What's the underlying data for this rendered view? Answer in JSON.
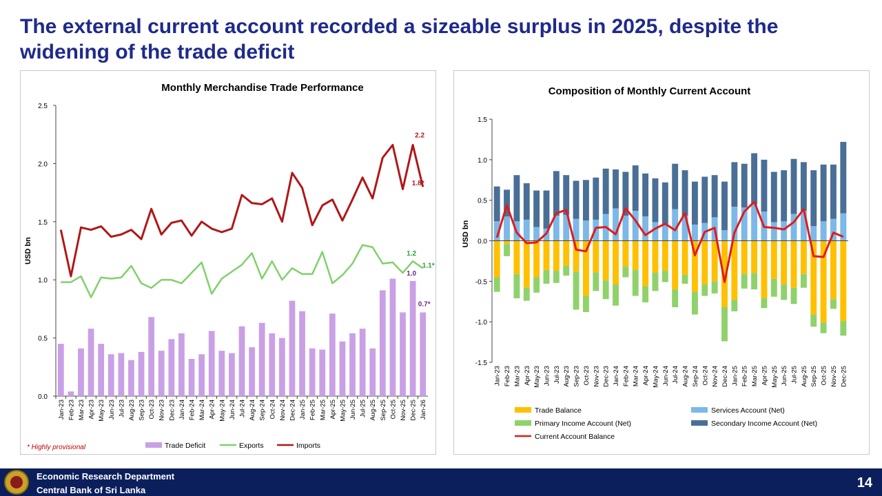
{
  "slide": {
    "title": "The external current account recorded a sizeable surplus in 2025, despite the widening of the trade deficit",
    "footer_line1": "Economic Research Department",
    "footer_line2": "Central Bank of Sri Lanka",
    "page_number": "14"
  },
  "chart_data": [
    {
      "type": "bar+line",
      "title": "Monthly Merchandise Trade Performance",
      "ylabel": "USD bn",
      "ylim": [
        0,
        2.5
      ],
      "yticks": [
        "0.0",
        "0.5",
        "1.0",
        "1.5",
        "2.0",
        "2.5"
      ],
      "grid": false,
      "legend_position": "bottom",
      "note": "* Highly provisional",
      "categories": [
        "Jan-23",
        "Feb-23",
        "Mar-23",
        "Apr-23",
        "May-23",
        "Jun-23",
        "Jul-23",
        "Aug-23",
        "Sep-23",
        "Oct-23",
        "Nov-23",
        "Dec-23",
        "Jan-24",
        "Feb-24",
        "Mar-24",
        "Apr-24",
        "May-24",
        "Jun-24",
        "Jul-24",
        "Aug-24",
        "Sep-24",
        "Oct-24",
        "Nov-24",
        "Dec-24",
        "Jan-25",
        "Feb-25",
        "Mar-25",
        "Apr-25",
        "May-25",
        "Jun-25",
        "Jul-25",
        "Aug-25",
        "Sep-25",
        "Oct-25",
        "Nov-25",
        "Dec-25",
        "Jan-26"
      ],
      "series": [
        {
          "name": "Trade Deficit",
          "kind": "bar",
          "color": "#c9a0e6",
          "values": [
            0.45,
            0.04,
            0.41,
            0.58,
            0.45,
            0.36,
            0.37,
            0.31,
            0.38,
            0.68,
            0.39,
            0.49,
            0.54,
            0.32,
            0.36,
            0.56,
            0.39,
            0.37,
            0.6,
            0.42,
            0.63,
            0.54,
            0.5,
            0.82,
            0.73,
            0.41,
            0.4,
            0.71,
            0.47,
            0.54,
            0.58,
            0.41,
            0.91,
            1.01,
            0.72,
            0.99,
            0.72
          ]
        },
        {
          "name": "Exports",
          "kind": "line",
          "color": "#7fd16b",
          "values": [
            0.98,
            0.98,
            1.03,
            0.85,
            1.02,
            1.01,
            1.02,
            1.12,
            0.97,
            0.93,
            1.0,
            1.0,
            0.97,
            1.06,
            1.15,
            0.88,
            1.01,
            1.07,
            1.13,
            1.23,
            1.01,
            1.16,
            1.0,
            1.1,
            1.05,
            1.05,
            1.24,
            0.97,
            1.04,
            1.14,
            1.3,
            1.28,
            1.14,
            1.15,
            1.06,
            1.16,
            1.1
          ]
        },
        {
          "name": "Imports",
          "kind": "line",
          "color": "#b01717",
          "values": [
            1.43,
            1.03,
            1.45,
            1.43,
            1.46,
            1.37,
            1.39,
            1.43,
            1.35,
            1.61,
            1.39,
            1.49,
            1.51,
            1.38,
            1.5,
            1.44,
            1.41,
            1.44,
            1.73,
            1.66,
            1.65,
            1.7,
            1.5,
            1.92,
            1.79,
            1.47,
            1.64,
            1.69,
            1.51,
            1.69,
            1.88,
            1.7,
            2.05,
            2.16,
            1.78,
            2.16,
            1.8
          ]
        }
      ],
      "data_labels": [
        {
          "series": "Imports",
          "category": "Dec-25",
          "text": "2.2",
          "color": "#b01717"
        },
        {
          "series": "Imports",
          "category": "Jan-26",
          "text": "1.8*",
          "color": "#b01717"
        },
        {
          "series": "Exports",
          "category": "Dec-25",
          "text": "1.2",
          "color": "#2e9e2e"
        },
        {
          "series": "Exports",
          "category": "Jan-26",
          "text": "1.1*",
          "color": "#2e9e2e"
        },
        {
          "series": "Trade Deficit",
          "category": "Dec-25",
          "text": "1.0",
          "color": "#6a2a8a"
        },
        {
          "series": "Trade Deficit",
          "category": "Jan-26",
          "text": "0.7*",
          "color": "#6a2a8a"
        }
      ]
    },
    {
      "type": "stacked-bar+line",
      "title": "Composition of Monthly Current Account",
      "ylabel": "USD bn",
      "ylim": [
        -1.5,
        1.5
      ],
      "yticks": [
        "-1.5",
        "-1.0",
        "-0.5",
        "0.0",
        "0.5",
        "1.0",
        "1.5"
      ],
      "grid": false,
      "legend_position": "bottom",
      "categories": [
        "Jan-23",
        "Feb-23",
        "Mar-23",
        "Apr-23",
        "May-23",
        "Jun-23",
        "Jul-23",
        "Aug-23",
        "Sep-23",
        "Oct-23",
        "Nov-23",
        "Dec-23",
        "Jan-24",
        "Feb-24",
        "Mar-24",
        "Apr-24",
        "May-24",
        "Jun-24",
        "Jul-24",
        "Aug-24",
        "Sep-24",
        "Oct-24",
        "Nov-24",
        "Dec-24",
        "Jan-25",
        "Feb-25",
        "Mar-25",
        "Apr-25",
        "May-25",
        "Jun-25",
        "Jul-25",
        "Aug-25",
        "Sep-25",
        "Oct-25",
        "Nov-25",
        "Dec-25"
      ],
      "series": [
        {
          "name": "Trade Balance",
          "kind": "bar",
          "stack": "neg",
          "color": "#ffc000",
          "values": [
            -0.45,
            -0.04,
            -0.41,
            -0.58,
            -0.45,
            -0.36,
            -0.37,
            -0.31,
            -0.38,
            -0.68,
            -0.39,
            -0.49,
            -0.54,
            -0.32,
            -0.36,
            -0.56,
            -0.39,
            -0.37,
            -0.6,
            -0.42,
            -0.63,
            -0.54,
            -0.5,
            -0.82,
            -0.73,
            -0.41,
            -0.4,
            -0.71,
            -0.47,
            -0.54,
            -0.58,
            -0.41,
            -0.91,
            -1.01,
            -0.72,
            -0.99
          ]
        },
        {
          "name": "Primary Income Account (Net)",
          "kind": "bar",
          "stack": "neg",
          "color": "#8fd26b",
          "values": [
            -0.18,
            -0.15,
            -0.3,
            -0.16,
            -0.19,
            -0.17,
            -0.15,
            -0.12,
            -0.47,
            -0.2,
            -0.23,
            -0.23,
            -0.26,
            -0.13,
            -0.32,
            -0.2,
            -0.23,
            -0.14,
            -0.22,
            -0.11,
            -0.28,
            -0.14,
            -0.15,
            -0.42,
            -0.14,
            -0.18,
            -0.2,
            -0.12,
            -0.22,
            -0.19,
            -0.2,
            -0.17,
            -0.15,
            -0.13,
            -0.12,
            -0.18
          ]
        },
        {
          "name": "Services Account (Net)",
          "kind": "bar",
          "stack": "pos",
          "color": "#7cb8e8",
          "values": [
            0.24,
            0.3,
            0.24,
            0.26,
            0.17,
            0.15,
            0.31,
            0.32,
            0.27,
            0.25,
            0.26,
            0.33,
            0.4,
            0.31,
            0.37,
            0.3,
            0.23,
            0.21,
            0.39,
            0.31,
            0.2,
            0.22,
            0.29,
            0.13,
            0.42,
            0.41,
            0.45,
            0.36,
            0.23,
            0.24,
            0.33,
            0.37,
            0.18,
            0.24,
            0.27,
            0.34
          ]
        },
        {
          "name": "Secondary Income Account (Net)",
          "kind": "bar",
          "stack": "pos",
          "color": "#4a6f97",
          "values": [
            0.43,
            0.33,
            0.57,
            0.45,
            0.45,
            0.47,
            0.55,
            0.49,
            0.47,
            0.5,
            0.52,
            0.56,
            0.48,
            0.54,
            0.56,
            0.53,
            0.54,
            0.51,
            0.56,
            0.56,
            0.53,
            0.57,
            0.52,
            0.6,
            0.55,
            0.54,
            0.63,
            0.64,
            0.62,
            0.63,
            0.68,
            0.6,
            0.69,
            0.7,
            0.67,
            0.88
          ]
        },
        {
          "name": "Current Account Balance",
          "kind": "line",
          "color": "#e01b1b",
          "values": [
            0.04,
            0.44,
            0.1,
            -0.03,
            -0.02,
            0.09,
            0.34,
            0.38,
            -0.11,
            -0.13,
            0.16,
            0.17,
            0.08,
            0.4,
            0.25,
            0.07,
            0.15,
            0.21,
            0.13,
            0.34,
            -0.18,
            0.11,
            0.16,
            -0.51,
            0.1,
            0.36,
            0.48,
            0.17,
            0.16,
            0.14,
            0.23,
            0.39,
            -0.19,
            -0.2,
            0.1,
            0.05
          ]
        }
      ]
    }
  ]
}
